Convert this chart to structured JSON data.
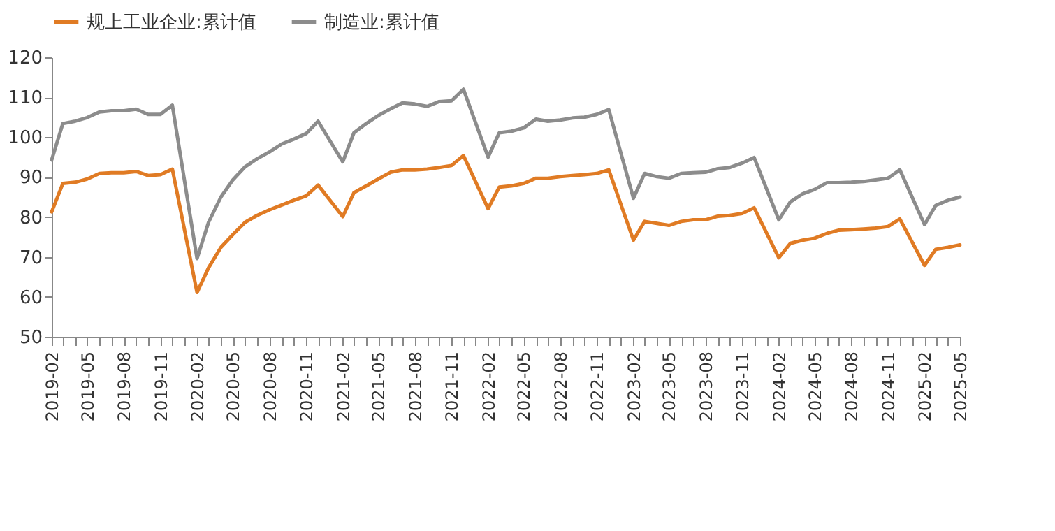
{
  "chart_data": {
    "type": "line",
    "x": [
      "2019-02",
      "2019-03",
      "2019-04",
      "2019-05",
      "2019-06",
      "2019-07",
      "2019-08",
      "2019-09",
      "2019-10",
      "2019-11",
      "2019-12",
      "2020-02",
      "2020-03",
      "2020-04",
      "2020-05",
      "2020-06",
      "2020-07",
      "2020-08",
      "2020-09",
      "2020-10",
      "2020-11",
      "2020-12",
      "2021-02",
      "2021-03",
      "2021-04",
      "2021-05",
      "2021-06",
      "2021-07",
      "2021-08",
      "2021-09",
      "2021-10",
      "2021-11",
      "2021-12",
      "2022-02",
      "2022-03",
      "2022-04",
      "2022-05",
      "2022-06",
      "2022-07",
      "2022-08",
      "2022-09",
      "2022-10",
      "2022-11",
      "2022-12",
      "2023-02",
      "2023-03",
      "2023-04",
      "2023-05",
      "2023-06",
      "2023-07",
      "2023-08",
      "2023-09",
      "2023-10",
      "2023-11",
      "2023-12",
      "2024-02",
      "2024-03",
      "2024-04",
      "2024-05",
      "2024-06",
      "2024-07",
      "2024-08",
      "2024-09",
      "2024-10",
      "2024-11",
      "2024-12",
      "2025-02",
      "2025-03",
      "2025-04",
      "2025-05"
    ],
    "series": [
      {
        "name": "规上工业企业:累计值",
        "color": "#e07b24",
        "values": [
          81.3,
          88.4,
          88.7,
          89.5,
          90.9,
          91.1,
          91.1,
          91.4,
          90.4,
          90.6,
          92.0,
          61.1,
          67.3,
          72.4,
          75.6,
          78.7,
          80.4,
          81.8,
          83.0,
          84.2,
          85.3,
          88.0,
          80.1,
          86.1,
          87.8,
          89.5,
          91.2,
          91.8,
          91.8,
          92.0,
          92.4,
          92.9,
          95.4,
          82.1,
          87.5,
          87.8,
          88.4,
          89.7,
          89.7,
          90.1,
          90.4,
          90.6,
          90.9,
          91.8,
          74.2,
          78.9,
          78.4,
          77.9,
          78.9,
          79.3,
          79.3,
          80.2,
          80.4,
          80.9,
          82.3,
          69.8,
          73.4,
          74.2,
          74.7,
          75.9,
          76.7,
          76.8,
          77.0,
          77.2,
          77.6,
          79.5,
          67.9,
          71.9,
          72.4,
          73.0
        ]
      },
      {
        "name": "制造业:累计值",
        "color": "#8c8c8c",
        "values": [
          94.3,
          103.4,
          104.0,
          104.9,
          106.3,
          106.6,
          106.6,
          107.0,
          105.7,
          105.7,
          108.0,
          69.6,
          78.7,
          85.0,
          89.3,
          92.6,
          94.6,
          96.3,
          98.3,
          99.5,
          100.9,
          104.0,
          93.8,
          101.1,
          103.4,
          105.4,
          107.1,
          108.6,
          108.3,
          107.7,
          108.9,
          109.1,
          112.0,
          95.0,
          101.1,
          101.5,
          102.3,
          104.5,
          104.0,
          104.3,
          104.8,
          105.0,
          105.7,
          106.9,
          84.7,
          90.9,
          90.1,
          89.7,
          90.9,
          91.1,
          91.2,
          92.1,
          92.4,
          93.5,
          94.9,
          79.3,
          83.8,
          85.8,
          86.9,
          88.6,
          88.6,
          88.7,
          88.9,
          89.3,
          89.7,
          91.8,
          78.1,
          82.9,
          84.2,
          85.0
        ]
      }
    ],
    "xlim": [
      "2019-02",
      "2025-05"
    ],
    "xticks": [
      "2019-02",
      "2019-05",
      "2019-08",
      "2019-11",
      "2020-02",
      "2020-05",
      "2020-08",
      "2020-11",
      "2021-02",
      "2021-05",
      "2021-08",
      "2021-11",
      "2022-02",
      "2022-05",
      "2022-08",
      "2022-11",
      "2023-02",
      "2023-05",
      "2023-08",
      "2023-11",
      "2024-02",
      "2024-05",
      "2024-08",
      "2024-11",
      "2025-02",
      "2025-05"
    ],
    "ylim": [
      50,
      120
    ],
    "yticks": [
      50,
      60,
      70,
      80,
      90,
      100,
      110,
      120
    ],
    "grid": false,
    "legend": "top",
    "marker": "none",
    "line_style": "solid"
  }
}
